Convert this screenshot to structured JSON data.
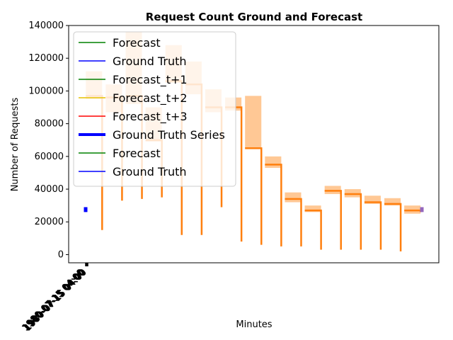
{
  "chart_data": {
    "type": "line",
    "title": "Request Count Ground and Forecast",
    "xlabel": "Minutes",
    "ylabel": "Number of Requests",
    "ylim": [
      -5000,
      140000
    ],
    "yticks": [
      0,
      20000,
      40000,
      60000,
      80000,
      100000,
      120000,
      140000
    ],
    "ytick_labels": [
      "0",
      "20000",
      "40000",
      "60000",
      "80000",
      "100000",
      "120000",
      "140000"
    ],
    "xtick_labels": [
      "1980-07-15 04:00"
    ],
    "legend": {
      "placement": "upper-left",
      "entries": [
        {
          "label": "Forecast",
          "color": "#008000",
          "width": 1.5
        },
        {
          "label": "Ground Truth",
          "color": "#0000ff",
          "width": 1.5
        },
        {
          "label": "Forecast_t+1",
          "color": "#008000",
          "width": 1.5
        },
        {
          "label": "Forecast_t+2",
          "color": "#e5c100",
          "width": 1.5
        },
        {
          "label": "Forecast_t+3",
          "color": "#ff0000",
          "width": 1.5
        },
        {
          "label": "Ground Truth Series",
          "color": "#0000ff",
          "width": 4
        },
        {
          "label": "Forecast",
          "color": "#008000",
          "width": 1.5
        },
        {
          "label": "Ground Truth",
          "color": "#0000ff",
          "width": 1.5
        }
      ]
    },
    "colors": {
      "interval_band": "#ffbe82",
      "forecast_line": "#ff7f0e",
      "ground_truth": "#0000ff",
      "end_marker": "#9467bd"
    },
    "ground_truth_series": [
      {
        "name": "Ground Truth",
        "start": 26000,
        "end": 29000
      }
    ],
    "forecast_segments": [
      {
        "band": [
          95000,
          112000
        ],
        "level": 97000,
        "drop_to": 15000
      },
      {
        "band": [
          87000,
          104000
        ],
        "level": 96000,
        "drop_to": 33000
      },
      {
        "band": [
          92000,
          136000
        ],
        "level": 97000,
        "drop_to": 34000
      },
      {
        "band": [
          69000,
          90000
        ],
        "level": 70000,
        "drop_to": 35000
      },
      {
        "band": [
          105000,
          128000
        ],
        "level": 106000,
        "drop_to": 12000
      },
      {
        "band": [
          98000,
          118000
        ],
        "level": 104000,
        "drop_to": 12000
      },
      {
        "band": [
          87000,
          101000
        ],
        "level": 90000,
        "drop_to": 29000
      },
      {
        "band": [
          88000,
          96000
        ],
        "level": 90000,
        "drop_to": 8000
      },
      {
        "band": [
          65000,
          97000
        ],
        "level": 65000,
        "drop_to": 6000
      },
      {
        "band": [
          53000,
          60000
        ],
        "level": 55000,
        "drop_to": 5000
      },
      {
        "band": [
          32000,
          38000
        ],
        "level": 34000,
        "drop_to": 5000
      },
      {
        "band": [
          26000,
          30000
        ],
        "level": 27000,
        "drop_to": 3000
      },
      {
        "band": [
          37000,
          42000
        ],
        "level": 39000,
        "drop_to": 3000
      },
      {
        "band": [
          35000,
          40000
        ],
        "level": 37000,
        "drop_to": 3000
      },
      {
        "band": [
          31000,
          36000
        ],
        "level": 32000,
        "drop_to": 3000
      },
      {
        "band": [
          30000,
          34500
        ],
        "level": 31000,
        "drop_to": 2000
      },
      {
        "band": [
          25000,
          30000
        ],
        "level": 27000,
        "drop_to": 26000
      }
    ]
  }
}
